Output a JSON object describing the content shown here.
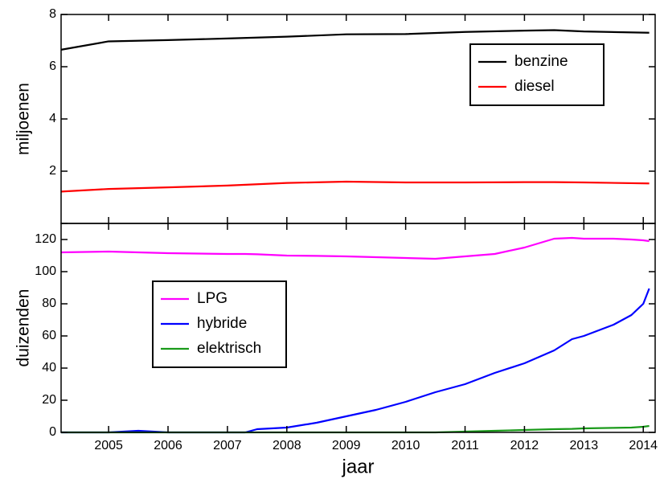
{
  "chart_data": [
    {
      "type": "line",
      "y_label": "miljoenen",
      "legend": "upper right",
      "xlim": [
        2004.2,
        2014.2
      ],
      "xticks": [
        2005,
        2006,
        2007,
        2008,
        2009,
        2010,
        2011,
        2012,
        2013,
        2014
      ],
      "ylim": [
        0,
        8
      ],
      "yticks": [
        0,
        2,
        4,
        6,
        8
      ],
      "x": [
        2004.2,
        2005,
        2006,
        2007,
        2008,
        2009,
        2010,
        2011,
        2012,
        2012.5,
        2013,
        2014.1
      ],
      "series": [
        {
          "name": "benzine",
          "color": "#000000",
          "values": [
            6.65,
            6.97,
            7.02,
            7.08,
            7.15,
            7.24,
            7.25,
            7.33,
            7.38,
            7.4,
            7.35,
            7.3
          ]
        },
        {
          "name": "diesel",
          "color": "#ff0000",
          "values": [
            1.22,
            1.32,
            1.38,
            1.45,
            1.55,
            1.6,
            1.57,
            1.57,
            1.58,
            1.58,
            1.57,
            1.53
          ]
        }
      ]
    },
    {
      "type": "line",
      "y_label": "duizenden",
      "x_label": "jaar",
      "legend": "middle left",
      "xlim": [
        2004.2,
        2014.2
      ],
      "xticks": [
        2005,
        2006,
        2007,
        2008,
        2009,
        2010,
        2011,
        2012,
        2013,
        2014
      ],
      "ylim": [
        0,
        130
      ],
      "yticks": [
        0,
        20,
        40,
        60,
        80,
        100,
        120
      ],
      "x": [
        2004.2,
        2005,
        2005.5,
        2006,
        2007,
        2007.3,
        2007.5,
        2008,
        2008.5,
        2009,
        2009.5,
        2010,
        2010.5,
        2011,
        2011.5,
        2012,
        2012.5,
        2012.8,
        2013,
        2013.5,
        2013.8,
        2014,
        2014.1
      ],
      "series": [
        {
          "name": "LPG",
          "color": "#ff00ff",
          "values": [
            112,
            112.5,
            112,
            111.5,
            111,
            111,
            110.8,
            110,
            109.8,
            109.5,
            109,
            108.5,
            108,
            109.5,
            111,
            115,
            120.5,
            121,
            120.5,
            120.5,
            120,
            119.5,
            119
          ]
        },
        {
          "name": "hybride",
          "color": "#0000ff",
          "values": [
            0,
            0,
            1,
            0,
            0,
            0,
            2,
            3,
            6,
            10,
            14,
            19,
            25,
            30,
            37,
            43,
            51,
            58,
            60,
            67,
            73,
            80,
            89.5
          ]
        },
        {
          "name": "elektrisch",
          "color": "#1a9a1a",
          "values": [
            0,
            0,
            0,
            0,
            0,
            0,
            0,
            0,
            0,
            0,
            0,
            0,
            0,
            0.5,
            1,
            1.5,
            2,
            2.2,
            2.5,
            2.8,
            3,
            3.5,
            4
          ]
        }
      ]
    }
  ]
}
